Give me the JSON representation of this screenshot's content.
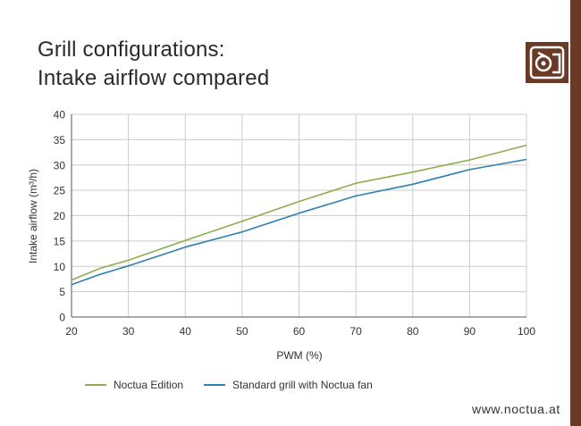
{
  "colors": {
    "brand": "#6b3a26",
    "series_1": "#8fad4e",
    "series_2": "#2f7fb0",
    "grid": "#cccccc",
    "axis": "#555555"
  },
  "header": {
    "title_line1": "Grill configurations:",
    "title_line2": "Intake airflow compared",
    "logo_icon": "noctua-owl-icon"
  },
  "footer": {
    "url": "www.noctua.at"
  },
  "chart_data": {
    "type": "line",
    "title": "Grill configurations: Intake airflow compared",
    "xlabel": "PWM (%)",
    "ylabel": "Intake airflow (m³/h)",
    "xlim": [
      20,
      100
    ],
    "ylim": [
      0,
      40
    ],
    "xticks": [
      20,
      30,
      40,
      50,
      60,
      70,
      80,
      90,
      100
    ],
    "yticks": [
      0,
      5,
      10,
      15,
      20,
      25,
      30,
      35,
      40
    ],
    "grid": true,
    "legend_position": "bottom",
    "series": [
      {
        "name": "Noctua Edition",
        "color": "#8fad4e",
        "x": [
          20,
          25,
          30,
          40,
          50,
          60,
          70,
          80,
          90,
          100
        ],
        "y": [
          7.3,
          9.6,
          11.2,
          15.1,
          18.9,
          22.8,
          26.4,
          28.6,
          31.0,
          33.9
        ]
      },
      {
        "name": "Standard grill with Noctua fan",
        "color": "#2f7fb0",
        "x": [
          20,
          25,
          30,
          40,
          50,
          60,
          70,
          80,
          90,
          100
        ],
        "y": [
          6.4,
          8.4,
          10.1,
          13.8,
          16.8,
          20.5,
          23.9,
          26.2,
          29.1,
          31.1
        ]
      }
    ]
  }
}
